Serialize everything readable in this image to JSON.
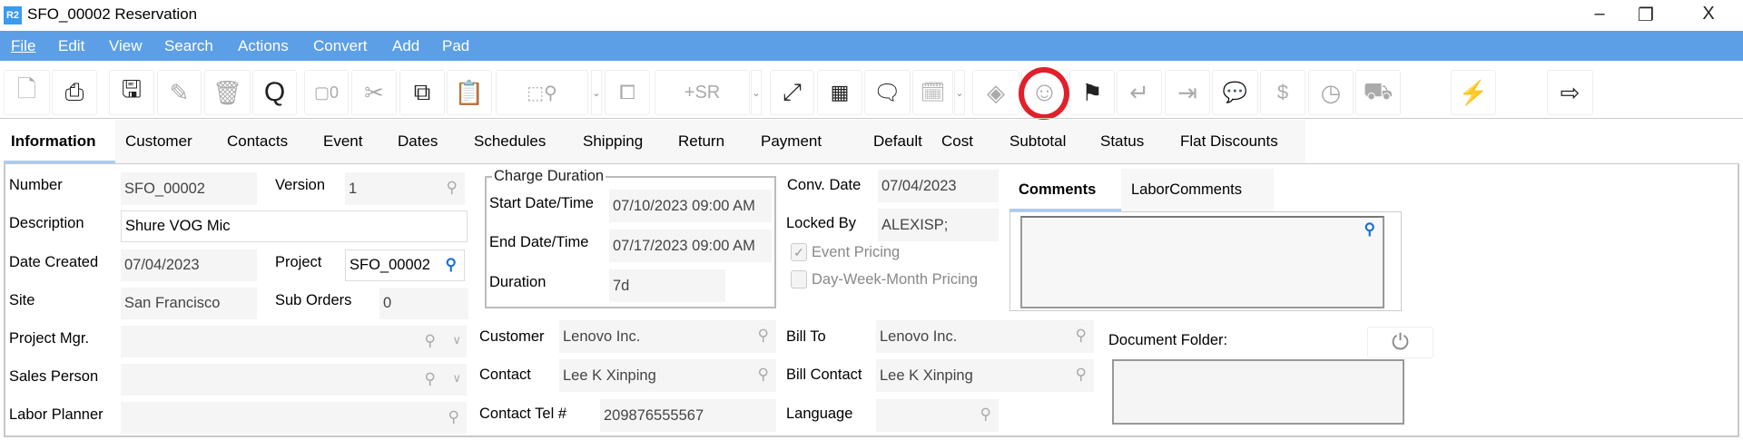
{
  "window": {
    "logo": "R2",
    "title": "SFO_00002 Reservation",
    "minimize": "–",
    "restore": "❐",
    "close": "X"
  },
  "menu": [
    "File",
    "Edit",
    "View",
    "Search",
    "Actions",
    "Convert",
    "Add",
    "Pad"
  ],
  "toolbar": {
    "sr_label": "+SR",
    "highlighted": "smiley-icon",
    "highlight_color": "#e0202a"
  },
  "tabs": [
    "Information",
    "Customer",
    "Contacts",
    "Event",
    "Dates",
    "Schedules",
    "Shipping",
    "Return",
    "Payment",
    "Default",
    "Cost",
    "Subtotal",
    "Status",
    "Flat Discounts"
  ],
  "active_tab": "Information",
  "form": {
    "number": {
      "label": "Number",
      "value": "SFO_00002"
    },
    "version": {
      "label": "Version",
      "value": "1"
    },
    "description": {
      "label": "Description",
      "value": "Shure VOG Mic"
    },
    "date_created": {
      "label": "Date Created",
      "value": "07/04/2023"
    },
    "project": {
      "label": "Project",
      "value": "SFO_00002"
    },
    "site": {
      "label": "Site",
      "value": "San Francisco"
    },
    "sub_orders": {
      "label": "Sub Orders",
      "value": "0"
    },
    "project_mgr": {
      "label": "Project Mgr.",
      "value": ""
    },
    "sales_person": {
      "label": "Sales Person",
      "value": ""
    },
    "labor_planner": {
      "label": "Labor Planner",
      "value": ""
    },
    "charge_duration": {
      "title": "Charge Duration",
      "start_label": "Start Date/Time",
      "start": "07/10/2023 09:00 AM",
      "end_label": "End Date/Time",
      "end": "07/17/2023 09:00 AM",
      "duration_label": "Duration",
      "duration": "7d"
    },
    "customer": {
      "label": "Customer",
      "value": "Lenovo Inc."
    },
    "contact": {
      "label": "Contact",
      "value": "Lee K Xinping"
    },
    "contact_tel": {
      "label": "Contact Tel #",
      "value": "209876555567"
    },
    "conv_date": {
      "label": "Conv. Date",
      "value": "07/04/2023"
    },
    "locked_by": {
      "label": "Locked By",
      "value": "ALEXISP;"
    },
    "event_pricing": {
      "label": "Event Pricing",
      "checked": true
    },
    "dwm_pricing": {
      "label": "Day-Week-Month Pricing",
      "checked": false
    },
    "bill_to": {
      "label": "Bill To",
      "value": "Lenovo Inc."
    },
    "bill_contact": {
      "label": "Bill Contact",
      "value": "Lee K Xinping"
    },
    "language": {
      "label": "Language",
      "value": ""
    },
    "comment_tabs": [
      "Comments",
      "LaborComments"
    ],
    "document_folder": {
      "label": "Document Folder:"
    }
  },
  "colors": {
    "menubar": "#5c9fe6",
    "tab_underline": "#a9cdf2",
    "accent_icon": "#1a6ed8"
  }
}
